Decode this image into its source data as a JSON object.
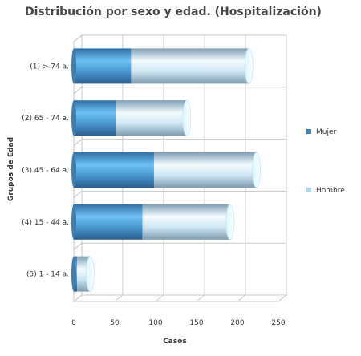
{
  "chart_data": {
    "type": "bar",
    "orientation": "horizontal",
    "stacked": true,
    "style": "3d-cylinder",
    "title": "Distribución por sexo y edad. (Hospitalización)",
    "xlabel": "Casos",
    "ylabel": "Grupos de Edad",
    "categories": [
      "(1) > 74 a.",
      "(2) 65 - 74 a.",
      "(3) 45 - 64 a.",
      "(4) 15 - 44 a.",
      "(5) 1 - 14 a."
    ],
    "series": [
      {
        "name": "Mujer",
        "values": [
          70,
          51,
          98,
          84,
          4
        ],
        "color": "#3f87c4"
      },
      {
        "name": "Hombre",
        "values": [
          144,
          87,
          125,
          107,
          16
        ],
        "color": "#a9d4ef"
      }
    ],
    "xlim": [
      0,
      250
    ],
    "xticks": [
      0,
      50,
      100,
      150,
      200,
      250
    ],
    "grid": true,
    "legend_position": "right"
  }
}
